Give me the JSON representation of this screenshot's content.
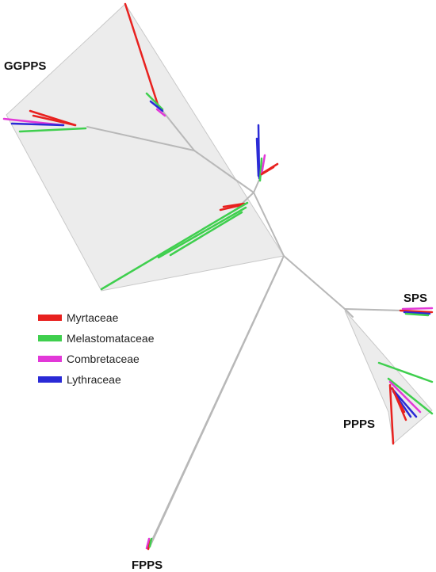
{
  "clades": {
    "ggpps": "GGPPS",
    "sps": "SPS",
    "ppps": "PPPS",
    "fpps": "FPPS"
  },
  "legend": {
    "items": [
      {
        "label": "Myrtaceae",
        "color": "#e8211f"
      },
      {
        "label": "Melastomataceae",
        "color": "#3fcf4e"
      },
      {
        "label": "Combretaceae",
        "color": "#e238d8"
      },
      {
        "label": "Lythraceae",
        "color": "#2a2ad6"
      }
    ]
  },
  "colors": {
    "hull_fill": "#ececec",
    "branch": "#b8b8b8"
  }
}
